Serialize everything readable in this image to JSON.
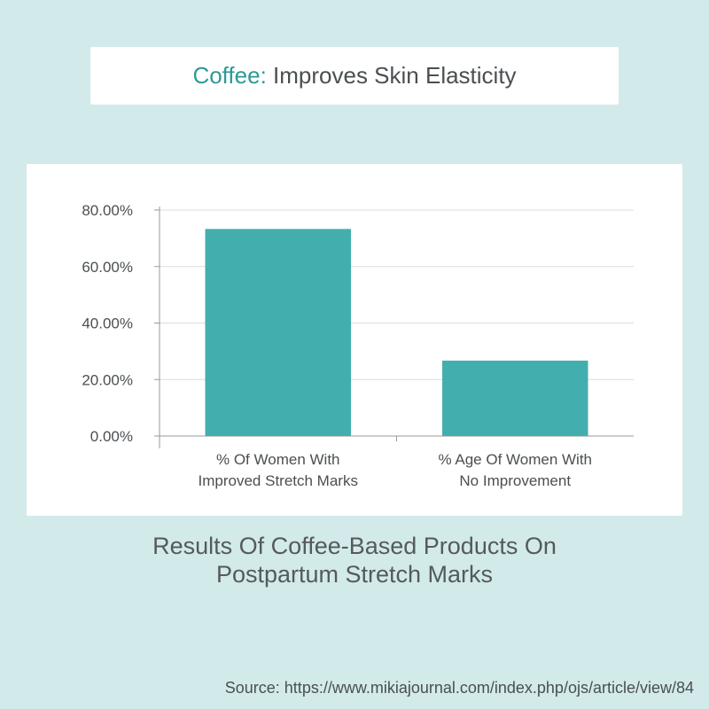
{
  "header": {
    "title_accent": "Coffee:",
    "title_rest": "Improves Skin Elasticity"
  },
  "chart_data": {
    "type": "bar",
    "categories": [
      [
        "% Of Women With",
        "Improved Stretch Marks"
      ],
      [
        "% Age Of Women With",
        "No Improvement"
      ]
    ],
    "values": [
      73.3,
      26.7
    ],
    "ylim": [
      0,
      80
    ],
    "yticks": [
      0,
      20,
      40,
      60,
      80
    ],
    "ytick_labels": [
      "0.00%",
      "20.00%",
      "40.00%",
      "60.00%",
      "80.00%"
    ],
    "grid": true,
    "bar_color": "#43aeae"
  },
  "caption": {
    "line1": "Results Of Coffee-Based Products On",
    "line2": "Postpartum Stretch Marks"
  },
  "source": "Source: https://www.mikiajournal.com/index.php/ojs/article/view/84"
}
